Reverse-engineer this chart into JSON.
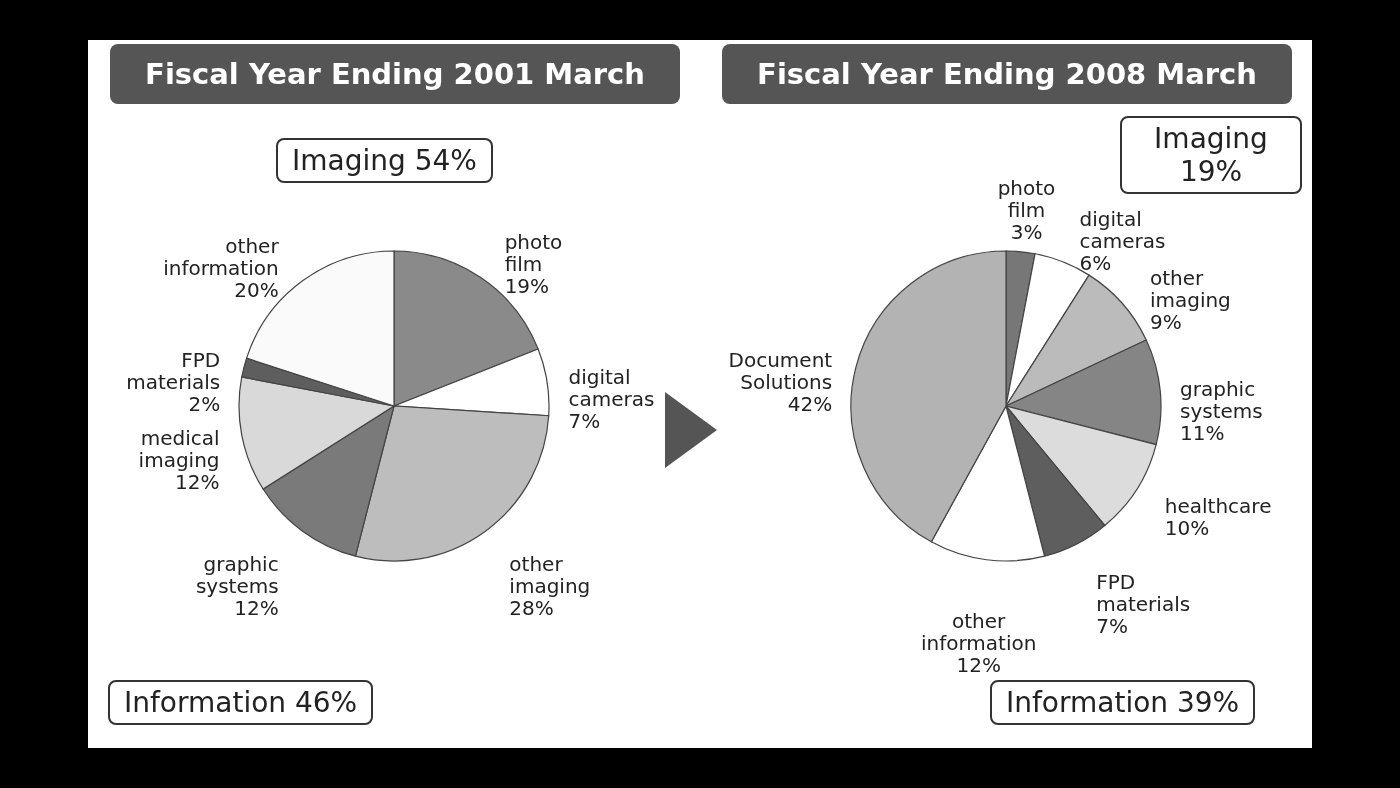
{
  "chart_data": [
    {
      "type": "pie",
      "title": "Fiscal Year Ending 2001 March",
      "categories": [
        "photo film",
        "digital cameras",
        "other imaging",
        "graphic systems",
        "medical imaging",
        "FPD materials",
        "other information"
      ],
      "values": [
        19,
        7,
        28,
        12,
        12,
        2,
        20
      ],
      "value_labels": [
        "19%",
        "7%",
        "28%",
        "12%",
        "12%",
        "2%",
        "20%"
      ],
      "colors": [
        "#8a8a8a",
        "#ffffff",
        "#bdbdbd",
        "#7a7a7a",
        "#d9d9d9",
        "#5e5e5e",
        "#fafafa"
      ],
      "annotations": [
        "Imaging 54%",
        "Information 46%"
      ]
    },
    {
      "type": "pie",
      "title": "Fiscal Year Ending 2008 March",
      "categories": [
        "photo film",
        "digital cameras",
        "other imaging",
        "graphic systems",
        "healthcare",
        "FPD materials",
        "other information",
        "Document Solutions"
      ],
      "values": [
        3,
        6,
        9,
        11,
        10,
        7,
        12,
        42
      ],
      "value_labels": [
        "3%",
        "6%",
        "9%",
        "11%",
        "10%",
        "7%",
        "12%",
        "42%"
      ],
      "colors": [
        "#777777",
        "#ffffff",
        "#bbbbbb",
        "#858585",
        "#dcdcdc",
        "#5e5e5e",
        "#ffffff",
        "#b3b3b3"
      ],
      "annotations": [
        "Imaging 19%",
        "Information 39%"
      ]
    }
  ]
}
